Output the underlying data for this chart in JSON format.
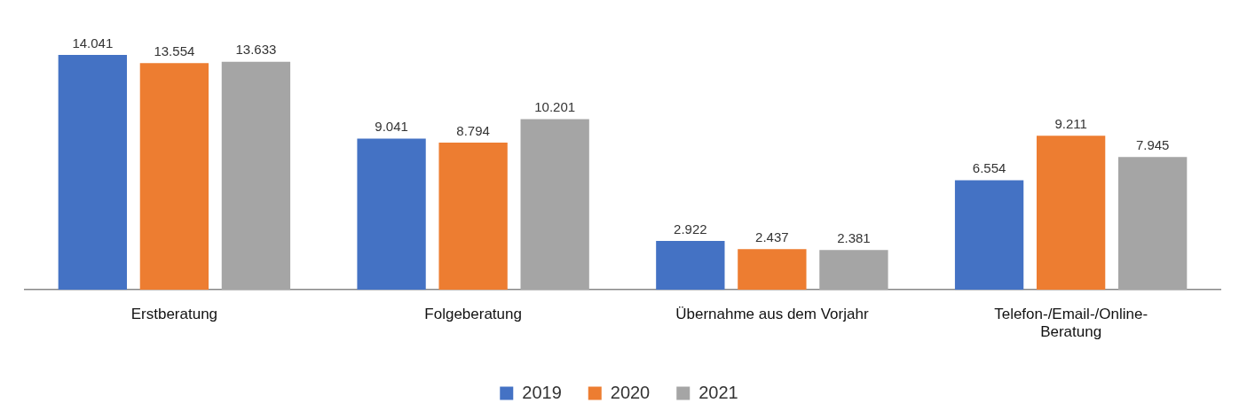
{
  "chart_data": {
    "type": "bar",
    "relative": false,
    "categories": [
      "Erstberatung",
      "Folgeberatung",
      "Übernahme aus dem Vorjahr",
      "Telefon-/Email-/Online-Beratung"
    ],
    "series": [
      {
        "name": "2019",
        "color": "#4472c4",
        "values": [
          14041,
          9041,
          2922,
          6554
        ],
        "value_labels": [
          "14.041",
          "9.041",
          "2.922",
          "6.554"
        ]
      },
      {
        "name": "2020",
        "color": "#ed7d31",
        "values": [
          13554,
          8794,
          2437,
          9211
        ],
        "value_labels": [
          "13.554",
          "8.794",
          "2.437",
          "9.211"
        ]
      },
      {
        "name": "2021",
        "color": "#a5a5a5",
        "values": [
          13633,
          10201,
          2381,
          7945
        ],
        "value_labels": [
          "13.633",
          "10.201",
          "2.381",
          "7.945"
        ]
      }
    ],
    "legend": "bottom",
    "grid": false,
    "tick_labels": "x"
  }
}
